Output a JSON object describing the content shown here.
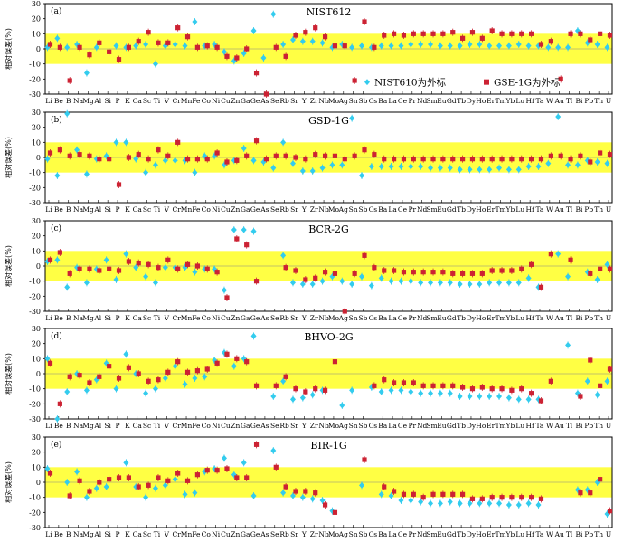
{
  "chart_data": {
    "type": "scatter",
    "elements": [
      "Li",
      "Be",
      "B",
      "Na",
      "Mg",
      "Al",
      "Si",
      "P",
      "K",
      "Ca",
      "Sc",
      "Ti",
      "V",
      "Cr",
      "Mn",
      "Fe",
      "Co",
      "Ni",
      "Cu",
      "Zn",
      "Ga",
      "Ge",
      "As",
      "Se",
      "Rb",
      "Sr",
      "Y",
      "Zr",
      "Nb",
      "Mo",
      "Ag",
      "Sn",
      "Sb",
      "Cs",
      "Ba",
      "La",
      "Ce",
      "Pr",
      "Nd",
      "Sm",
      "Eu",
      "Gd",
      "Tb",
      "Dy",
      "Ho",
      "Er",
      "Tm",
      "Yb",
      "Lu",
      "Hf",
      "Ta",
      "W",
      "Au",
      "Tl",
      "Bi",
      "Pb",
      "Th",
      "U"
    ],
    "ylabel": "相对误差(%)",
    "ylim": [
      -30,
      30
    ],
    "yticks": [
      -30,
      -20,
      -10,
      0,
      10,
      20,
      30
    ],
    "band": [
      -10,
      10
    ],
    "colors": {
      "band": "#ffff44",
      "nist610": "#33ccee",
      "gse": "#cc2233"
    },
    "legend": {
      "nist610": "NIST610为外标",
      "gse": "GSE-1G为外标"
    },
    "panels": [
      {
        "label": "(a)",
        "title": "NIST612",
        "nist610": [
          1,
          7,
          1,
          3,
          -16,
          1,
          null,
          2,
          1,
          2,
          3,
          -10,
          2,
          3,
          2,
          18,
          2,
          3,
          -2,
          -8,
          -3,
          12,
          -6,
          23,
          3,
          6,
          5,
          5,
          4,
          1,
          3,
          1,
          2,
          1,
          2,
          2,
          2,
          3,
          3,
          3,
          2,
          2,
          2,
          3,
          3,
          2,
          2,
          2,
          3,
          2,
          2,
          1,
          1,
          1,
          12,
          4,
          3,
          1
        ],
        "gse": [
          3,
          1,
          -21,
          1,
          -4,
          4,
          -2,
          -7,
          1,
          5,
          11,
          4,
          4,
          14,
          8,
          1,
          2,
          1,
          -5,
          -6,
          0,
          -16,
          -30,
          1,
          -5,
          9,
          11,
          14,
          8,
          2,
          2,
          -21,
          18,
          1,
          9,
          10,
          9,
          10,
          10,
          10,
          10,
          11,
          7,
          11,
          7,
          12,
          10,
          10,
          10,
          10,
          3,
          5,
          -20,
          10,
          10,
          6,
          10,
          9
        ]
      },
      {
        "label": "(b)",
        "title": "GSD-1G",
        "nist610": [
          -1,
          -12,
          29,
          5,
          -11,
          -1,
          1,
          10,
          10,
          -1,
          -10,
          -5,
          -2,
          -2,
          -2,
          -10,
          1,
          1,
          -5,
          -2,
          6,
          -2,
          -3,
          -7,
          10,
          -4,
          -9,
          -9,
          -7,
          -5,
          -5,
          26,
          -12,
          -6,
          -6,
          -6,
          -6,
          -6,
          -6,
          -7,
          -7,
          -7,
          -8,
          -8,
          -8,
          -8,
          -7,
          -8,
          -8,
          -6,
          -6,
          -4,
          27,
          -5,
          -5,
          -2,
          -3,
          -4
        ],
        "gse": [
          3,
          5,
          1,
          2,
          1,
          -1,
          -1,
          -18,
          0,
          2,
          -1,
          5,
          1,
          10,
          -1,
          -1,
          -1,
          3,
          -3,
          -2,
          1,
          11,
          -1,
          1,
          1,
          0,
          -1,
          2,
          1,
          1,
          -1,
          1,
          5,
          2,
          -1,
          -1,
          -1,
          -1,
          -1,
          -1,
          -1,
          -1,
          -1,
          -1,
          -1,
          -1,
          -1,
          -1,
          -1,
          -1,
          -1,
          1,
          1,
          -1,
          1,
          -3,
          3,
          2
        ]
      },
      {
        "label": "(c)",
        "title": "BCR-2G",
        "nist610": [
          3,
          4,
          -14,
          -1,
          -11,
          -2,
          4,
          -9,
          8,
          -1,
          -7,
          -11,
          -1,
          -1,
          -1,
          -4,
          -2,
          -2,
          -16,
          24,
          24,
          23,
          null,
          null,
          7,
          -11,
          -12,
          -12,
          -10,
          -7,
          -10,
          -12,
          -7,
          -13,
          -8,
          -10,
          -10,
          -10,
          -11,
          -11,
          -11,
          -11,
          -12,
          -12,
          -12,
          -11,
          -11,
          -11,
          -11,
          -8,
          -14,
          null,
          8,
          -7,
          null,
          -4,
          -9,
          1
        ],
        "gse": [
          4,
          9,
          -5,
          -2,
          -2,
          -3,
          -2,
          -3,
          3,
          2,
          1,
          -1,
          4,
          -2,
          1,
          0,
          -2,
          -4,
          -21,
          18,
          14,
          -10,
          null,
          null,
          -1,
          -3,
          -9,
          -8,
          -4,
          -5,
          -30,
          -5,
          7,
          -1,
          -3,
          -3,
          -4,
          -4,
          -4,
          -4,
          -4,
          -5,
          -5,
          -5,
          -5,
          -3,
          -3,
          -3,
          -2,
          1,
          -14,
          8,
          null,
          4,
          null,
          -5,
          -2,
          -2
        ]
      },
      {
        "label": "(d)",
        "title": "BHVO-2G",
        "nist610": [
          10,
          -30,
          -12,
          0,
          -11,
          -4,
          7,
          -10,
          13,
          0,
          -13,
          -10,
          -3,
          5,
          -7,
          -3,
          -2,
          9,
          14,
          5,
          10,
          25,
          null,
          -15,
          -5,
          -17,
          -16,
          -14,
          -11,
          null,
          -21,
          -11,
          null,
          -9,
          -12,
          -11,
          -11,
          -12,
          -13,
          -13,
          -13,
          -13,
          -15,
          -15,
          -15,
          -15,
          -15,
          -16,
          -17,
          -17,
          -17,
          null,
          null,
          19,
          -13,
          -5,
          -14,
          -5
        ],
        "gse": [
          7,
          -20,
          -2,
          -1,
          -6,
          -2,
          5,
          -3,
          4,
          0,
          -5,
          -4,
          1,
          8,
          1,
          2,
          3,
          7,
          13,
          10,
          8,
          -8,
          null,
          -8,
          -2,
          -10,
          -12,
          -10,
          -11,
          8,
          null,
          null,
          null,
          -8,
          -4,
          -6,
          -6,
          -6,
          -8,
          -8,
          -8,
          -8,
          -9,
          -10,
          -9,
          -10,
          -10,
          -11,
          -10,
          -13,
          -18,
          -5,
          null,
          null,
          -15,
          9,
          -8,
          3
        ]
      },
      {
        "label": "(e)",
        "title": "BIR-1G",
        "nist610": [
          9,
          null,
          0,
          7,
          -10,
          -4,
          -3,
          null,
          13,
          -3,
          -10,
          -4,
          -2,
          2,
          -8,
          -7,
          7,
          9,
          16,
          5,
          13,
          -9,
          null,
          21,
          -7,
          -9,
          -10,
          -11,
          -12,
          -19,
          null,
          null,
          -2,
          null,
          -8,
          -9,
          -12,
          -12,
          -13,
          -14,
          -14,
          -13,
          -14,
          -14,
          -14,
          -14,
          -14,
          -15,
          -15,
          -14,
          -15,
          null,
          null,
          null,
          -5,
          -5,
          0,
          -21
        ],
        "gse": [
          6,
          null,
          -9,
          1,
          -6,
          0,
          2,
          3,
          3,
          -3,
          -2,
          3,
          1,
          6,
          1,
          5,
          8,
          8,
          9,
          3,
          3,
          25,
          null,
          10,
          -3,
          -6,
          -6,
          -7,
          -15,
          -20,
          null,
          null,
          15,
          null,
          -3,
          -6,
          -8,
          -8,
          -10,
          -8,
          -8,
          -8,
          -8,
          -11,
          -11,
          -10,
          -10,
          -10,
          -10,
          -10,
          -11,
          null,
          null,
          null,
          -7,
          -7,
          2,
          -19
        ]
      }
    ]
  }
}
